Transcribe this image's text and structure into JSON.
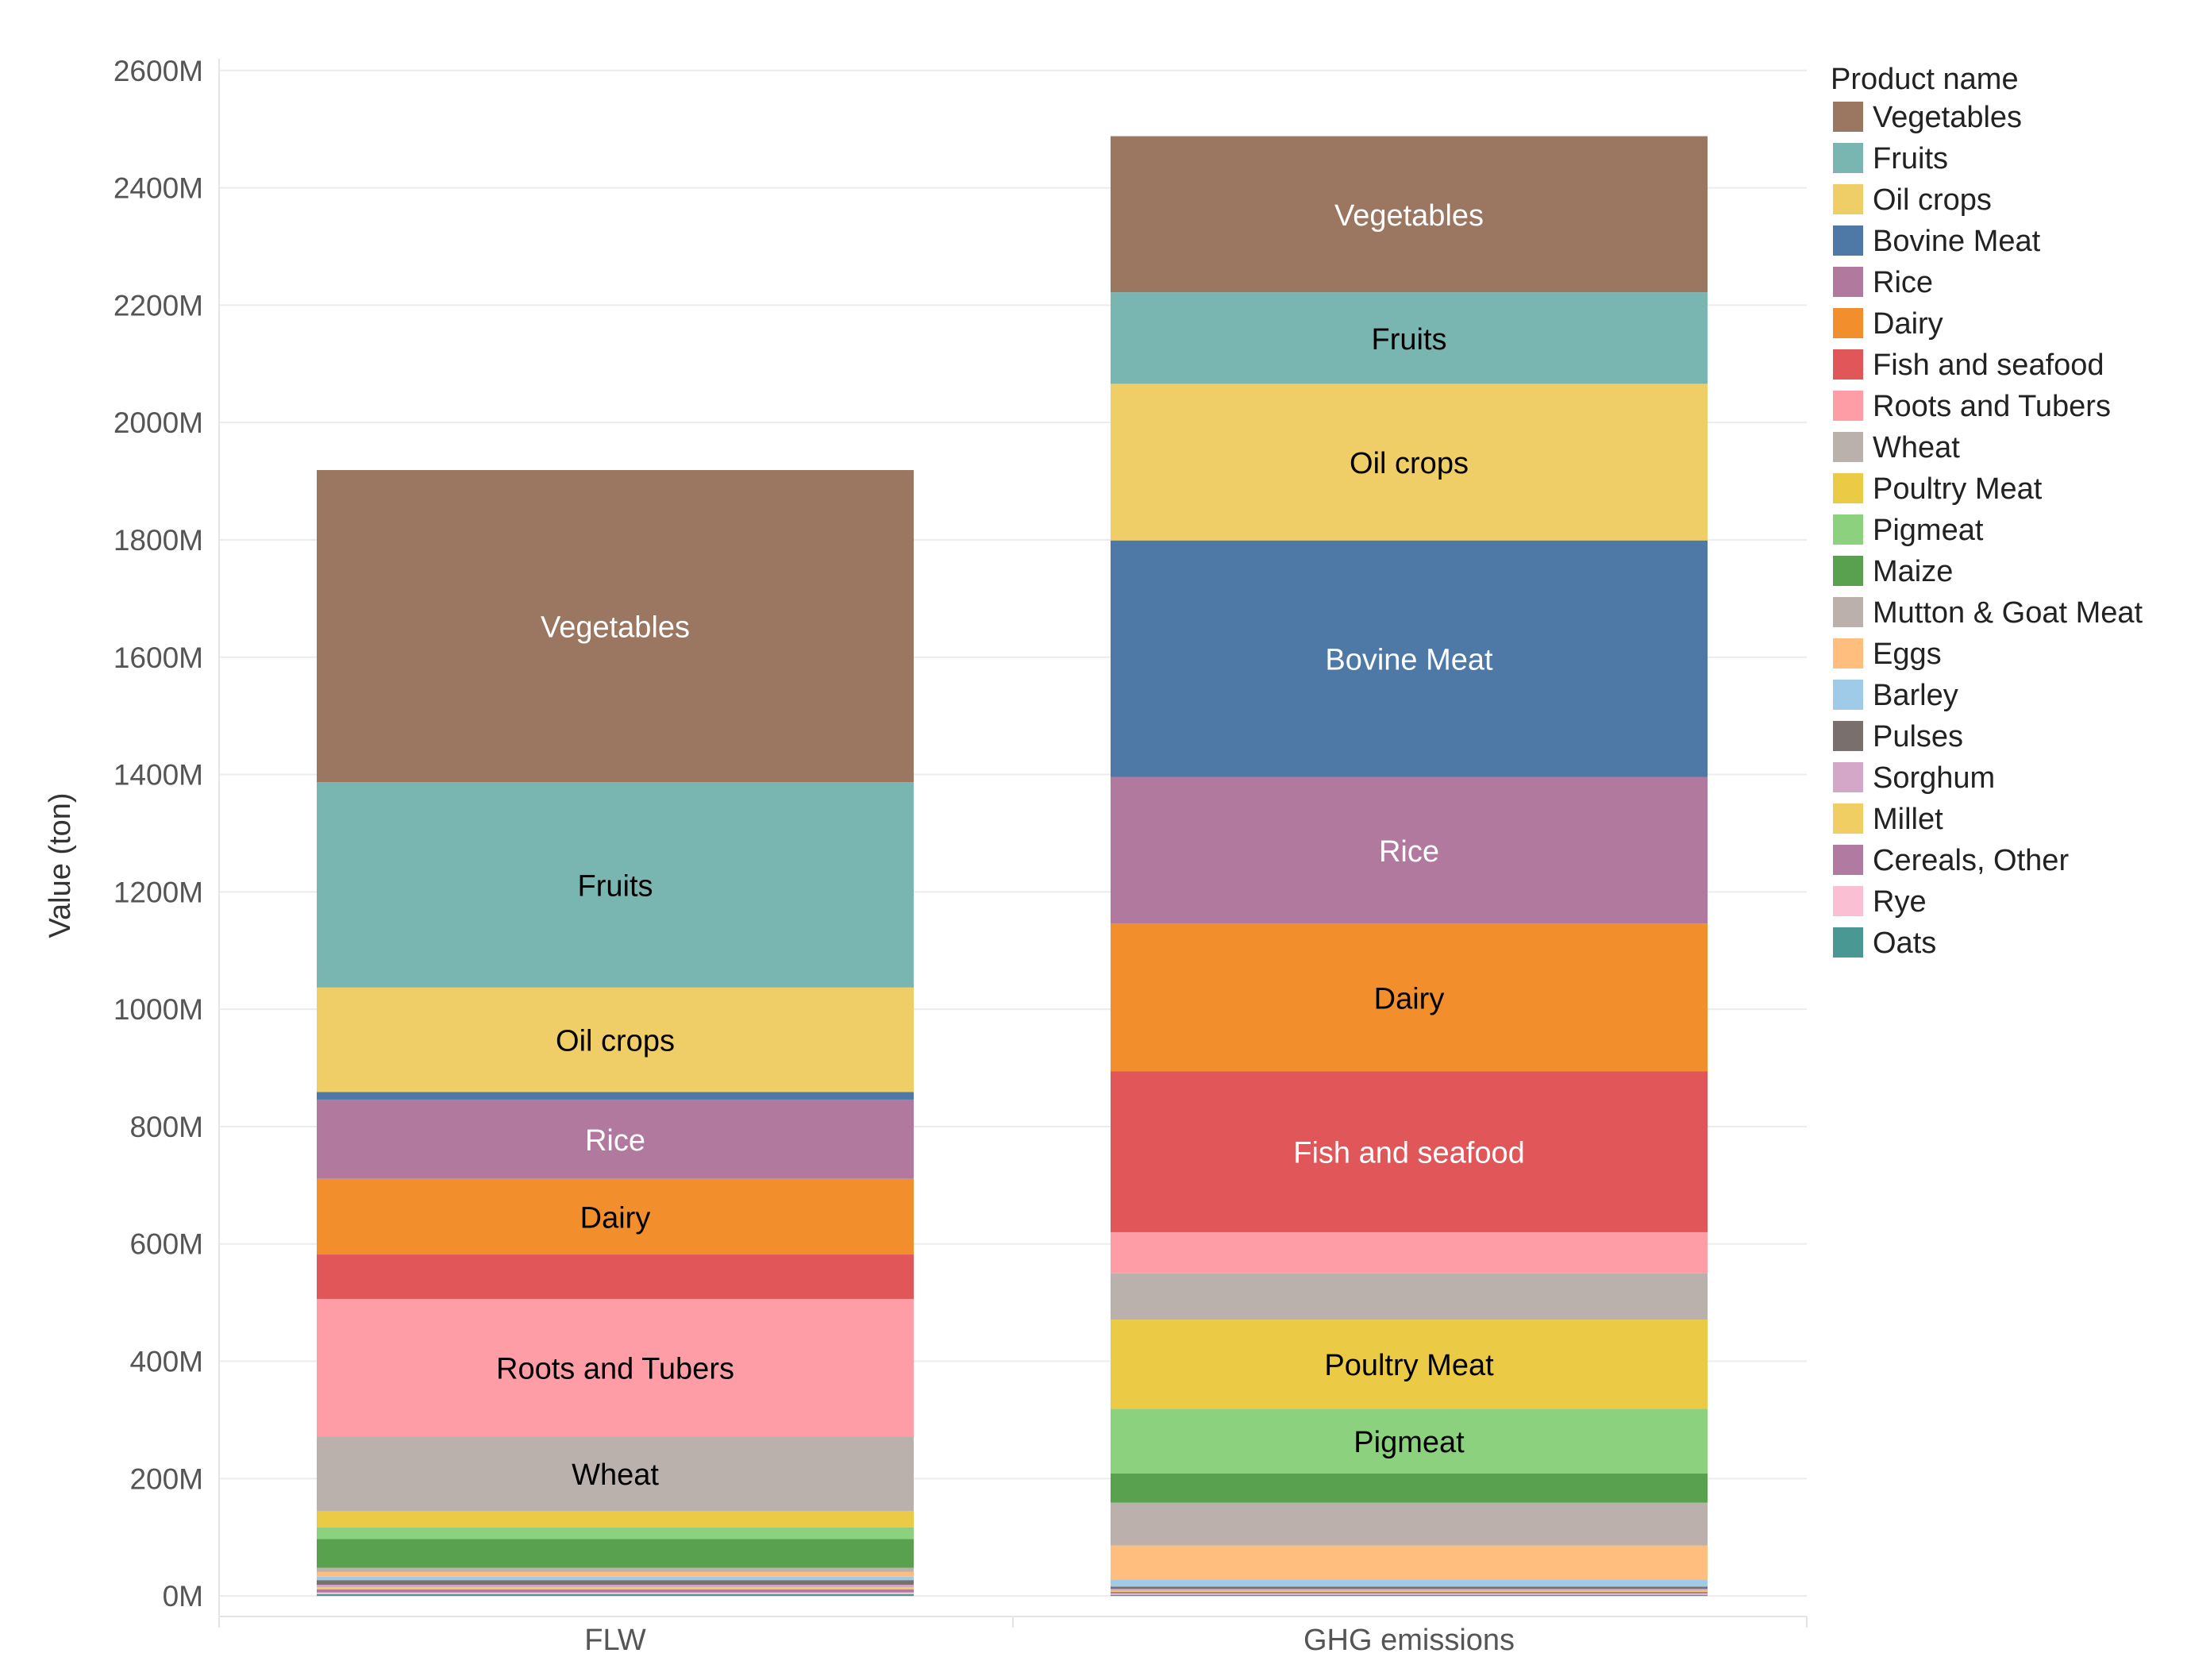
{
  "chart_data": {
    "type": "bar",
    "stacked": true,
    "title": "",
    "xlabel": "",
    "ylabel": "Value (ton)",
    "y_tick_labels": [
      "0M",
      "200M",
      "400M",
      "600M",
      "800M",
      "1000M",
      "1200M",
      "1400M",
      "1600M",
      "1800M",
      "2000M",
      "2200M",
      "2400M",
      "2600M"
    ],
    "y_tick_values": [
      0,
      200,
      400,
      600,
      800,
      1000,
      1200,
      1400,
      1600,
      1800,
      2000,
      2200,
      2400,
      2600
    ],
    "ylim": [
      -35,
      2620
    ],
    "categories": [
      "FLW",
      "GHG emissions"
    ],
    "legend": {
      "title": "Product name",
      "position": "right"
    },
    "series": [
      {
        "name": "Vegetables",
        "color": "#9b7660",
        "label_color": "#ffffff",
        "values": [
          532,
          266
        ],
        "show_label": [
          true,
          true
        ]
      },
      {
        "name": "Fruits",
        "color": "#79b6b1",
        "label_color": "#000000",
        "values": [
          350,
          156
        ],
        "show_label": [
          true,
          true
        ]
      },
      {
        "name": "Oil crops",
        "color": "#efcd67",
        "label_color": "#000000",
        "values": [
          178,
          267
        ],
        "show_label": [
          true,
          true
        ]
      },
      {
        "name": "Bovine Meat",
        "color": "#4e79a7",
        "label_color": "#ffffff",
        "values": [
          13,
          403
        ],
        "show_label": [
          false,
          true
        ]
      },
      {
        "name": "Rice",
        "color": "#b2799f",
        "label_color": "#ffffff",
        "values": [
          135,
          250
        ],
        "show_label": [
          true,
          true
        ]
      },
      {
        "name": "Dairy",
        "color": "#f28e2c",
        "label_color": "#000000",
        "values": [
          129,
          252
        ],
        "show_label": [
          true,
          true
        ]
      },
      {
        "name": "Fish and seafood",
        "color": "#e15759",
        "label_color": "#ffffff",
        "values": [
          76,
          274
        ],
        "show_label": [
          false,
          true
        ]
      },
      {
        "name": "Roots and Tubers",
        "color": "#ff9da7",
        "label_color": "#000000",
        "values": [
          234,
          70
        ],
        "show_label": [
          true,
          false
        ]
      },
      {
        "name": "Wheat",
        "color": "#bab0ac",
        "label_color": "#000000",
        "values": [
          127,
          79
        ],
        "show_label": [
          true,
          false
        ]
      },
      {
        "name": "Poultry Meat",
        "color": "#ebcb46",
        "label_color": "#000000",
        "values": [
          28,
          152
        ],
        "show_label": [
          false,
          true
        ]
      },
      {
        "name": "Pigmeat",
        "color": "#8cd17d",
        "label_color": "#000000",
        "values": [
          20,
          110
        ],
        "show_label": [
          false,
          true
        ]
      },
      {
        "name": "Maize",
        "color": "#59a14f",
        "label_color": "#ffffff",
        "values": [
          49,
          50
        ],
        "show_label": [
          false,
          false
        ]
      },
      {
        "name": "Mutton & Goat Meat",
        "color": "#bbb0ac",
        "label_color": "#000000",
        "values": [
          7,
          73
        ],
        "show_label": [
          false,
          false
        ]
      },
      {
        "name": "Eggs",
        "color": "#ffbe7d",
        "label_color": "#000000",
        "values": [
          8,
          58
        ],
        "show_label": [
          false,
          false
        ]
      },
      {
        "name": "Barley",
        "color": "#a0cbe8",
        "label_color": "#000000",
        "values": [
          6,
          12
        ],
        "show_label": [
          false,
          false
        ]
      },
      {
        "name": "Pulses",
        "color": "#79706e",
        "label_color": "#ffffff",
        "values": [
          8,
          4
        ],
        "show_label": [
          false,
          false
        ]
      },
      {
        "name": "Sorghum",
        "color": "#d4a6c8",
        "label_color": "#000000",
        "values": [
          4,
          3
        ],
        "show_label": [
          false,
          false
        ]
      },
      {
        "name": "Millet",
        "color": "#f1ce63",
        "label_color": "#000000",
        "values": [
          4,
          2
        ],
        "show_label": [
          false,
          false
        ]
      },
      {
        "name": "Cereals, Other",
        "color": "#b07aa1",
        "label_color": "#ffffff",
        "values": [
          5,
          3
        ],
        "show_label": [
          false,
          false
        ]
      },
      {
        "name": "Rye",
        "color": "#fabfd2",
        "label_color": "#000000",
        "values": [
          3,
          2
        ],
        "show_label": [
          false,
          false
        ]
      },
      {
        "name": "Oats",
        "color": "#499894",
        "label_color": "#ffffff",
        "values": [
          3,
          2
        ],
        "show_label": [
          false,
          false
        ]
      }
    ]
  }
}
